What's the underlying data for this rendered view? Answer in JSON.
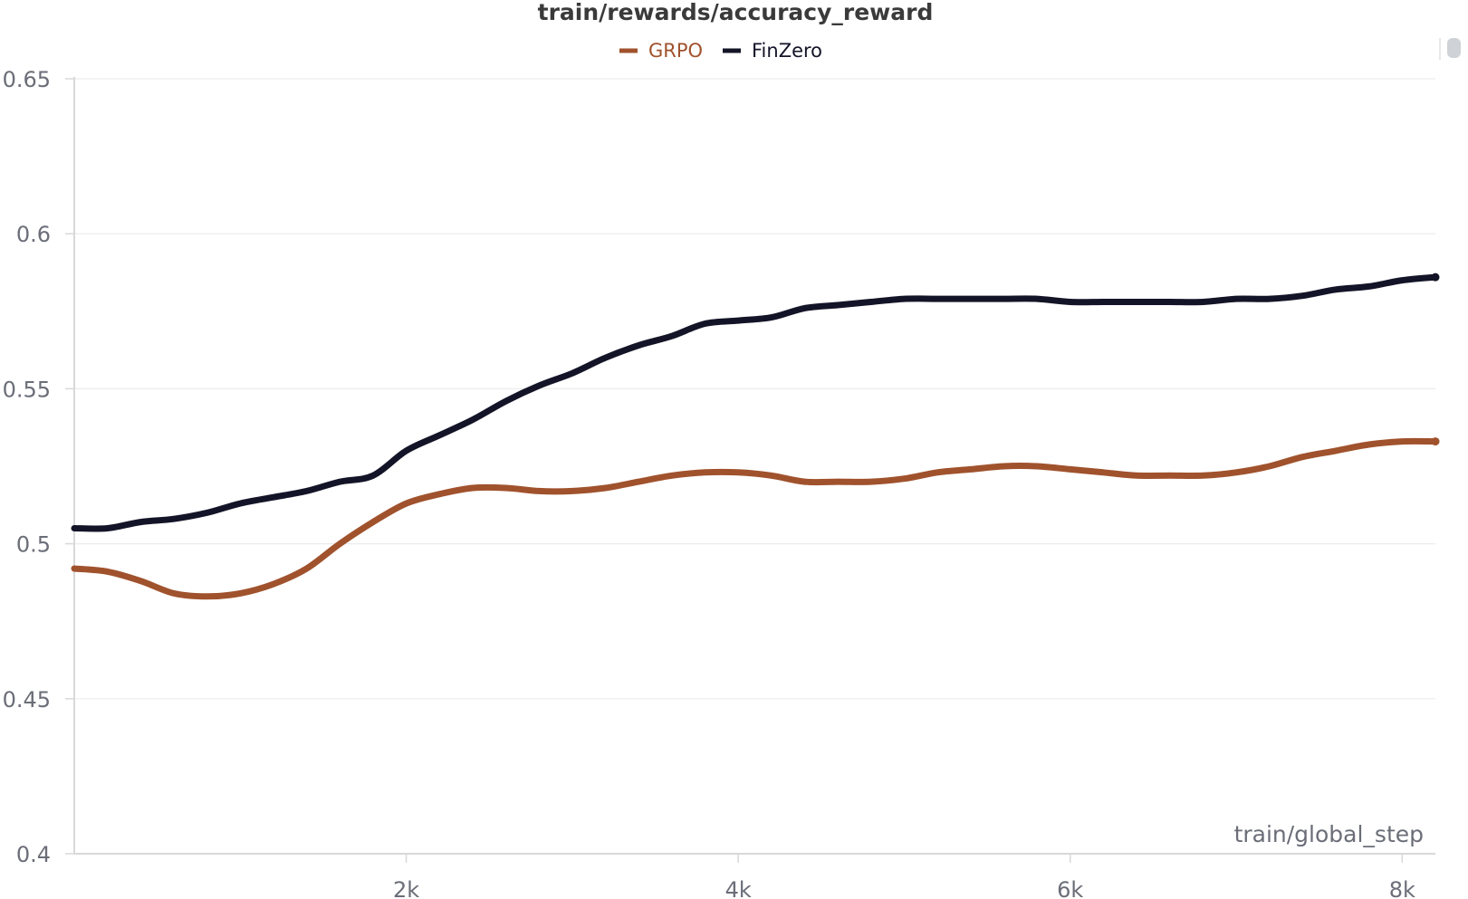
{
  "chart_data": {
    "type": "line",
    "title": "train/rewards/accuracy_reward",
    "xlabel": "train/global_step",
    "ylabel": "",
    "xlim": [
      0,
      8200
    ],
    "ylim": [
      0.4,
      0.65
    ],
    "yticks": [
      "0.4",
      "0.45",
      "0.5",
      "0.55",
      "0.6",
      "0.65"
    ],
    "ytick_values": [
      0.4,
      0.45,
      0.5,
      0.55,
      0.6,
      0.65
    ],
    "xticks": [
      "2k",
      "4k",
      "6k",
      "8k"
    ],
    "xtick_values": [
      2000,
      4000,
      6000,
      8000
    ],
    "grid": true,
    "legend_position": "top-center",
    "series": [
      {
        "name": "GRPO",
        "color": "#a0522d",
        "x": [
          0,
          200,
          400,
          600,
          800,
          1000,
          1200,
          1400,
          1600,
          1800,
          2000,
          2200,
          2400,
          2600,
          2800,
          3000,
          3200,
          3400,
          3600,
          3800,
          4000,
          4200,
          4400,
          4600,
          4800,
          5000,
          5200,
          5400,
          5600,
          5800,
          6000,
          6200,
          6400,
          6600,
          6800,
          7000,
          7200,
          7400,
          7600,
          7800,
          8000,
          8200
        ],
        "y": [
          0.492,
          0.491,
          0.488,
          0.484,
          0.483,
          0.484,
          0.487,
          0.492,
          0.5,
          0.507,
          0.513,
          0.516,
          0.518,
          0.518,
          0.517,
          0.517,
          0.518,
          0.52,
          0.522,
          0.523,
          0.523,
          0.522,
          0.52,
          0.52,
          0.52,
          0.521,
          0.523,
          0.524,
          0.525,
          0.525,
          0.524,
          0.523,
          0.522,
          0.522,
          0.522,
          0.523,
          0.525,
          0.528,
          0.53,
          0.532,
          0.533,
          0.533
        ]
      },
      {
        "name": "FinZero",
        "color": "#141428",
        "x": [
          0,
          200,
          400,
          600,
          800,
          1000,
          1200,
          1400,
          1600,
          1800,
          2000,
          2200,
          2400,
          2600,
          2800,
          3000,
          3200,
          3400,
          3600,
          3800,
          4000,
          4200,
          4400,
          4600,
          4800,
          5000,
          5200,
          5400,
          5600,
          5800,
          6000,
          6200,
          6400,
          6600,
          6800,
          7000,
          7200,
          7400,
          7600,
          7800,
          8000,
          8200
        ],
        "y": [
          0.505,
          0.505,
          0.507,
          0.508,
          0.51,
          0.513,
          0.515,
          0.517,
          0.52,
          0.522,
          0.53,
          0.535,
          0.54,
          0.546,
          0.551,
          0.555,
          0.56,
          0.564,
          0.567,
          0.571,
          0.572,
          0.573,
          0.576,
          0.577,
          0.578,
          0.579,
          0.579,
          0.579,
          0.579,
          0.579,
          0.578,
          0.578,
          0.578,
          0.578,
          0.578,
          0.579,
          0.579,
          0.58,
          0.582,
          0.583,
          0.585,
          0.586
        ]
      }
    ]
  }
}
